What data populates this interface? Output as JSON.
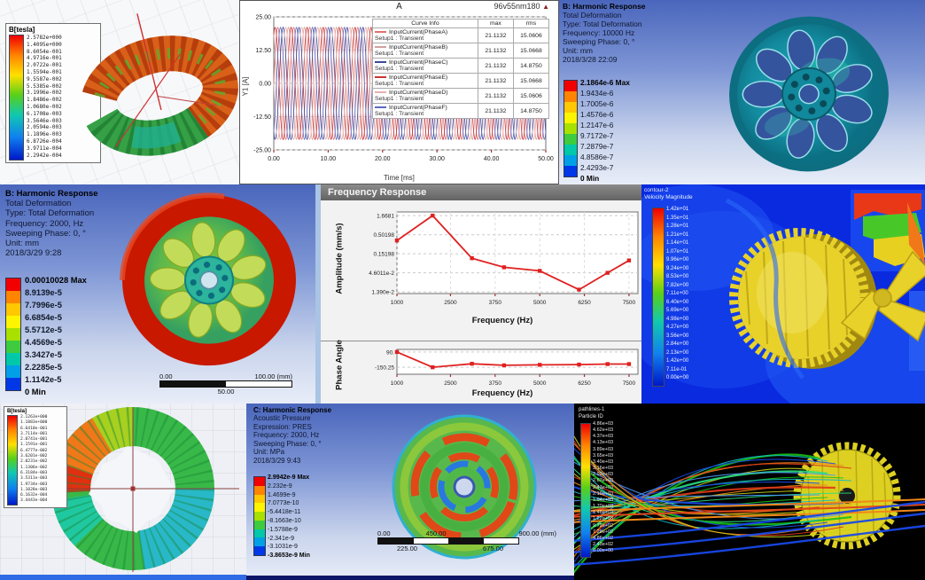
{
  "colors": {
    "band_colors": [
      "#f20000",
      "#ff8400",
      "#ffc800",
      "#fdf400",
      "#a8e000",
      "#3ecc3e",
      "#00c8a8",
      "#00a0e6",
      "#0038e8"
    ],
    "accent_red": "#e02020"
  },
  "maxwell_stator": {
    "legend_title": "B[tesla]",
    "legend_values": [
      "2.5782e+000",
      "1.4095e+000",
      "8.6054e-001",
      "4.9716e-001",
      "2.0722e-001",
      "1.5594e-001",
      "9.5587e-002",
      "5.5385e-002",
      "3.1996e-002",
      "1.8486e-002",
      "1.0680e-002",
      "6.1708e-003",
      "3.5646e-003",
      "2.0594e-003",
      "1.1896e-003",
      "6.8726e-004",
      "3.9711e-004",
      "2.2942e-004"
    ]
  },
  "harmonic_wheel_right": {
    "header_lines": [
      "B: Harmonic Response",
      "Total Deformation",
      "Type: Total Deformation",
      "Frequency: 10000 Hz",
      "Sweeping Phase: 0, °",
      "Unit: mm",
      "2018/3/28 22:09"
    ],
    "legend": [
      "2.1864e-6 Max",
      "1.9434e-6",
      "1.7005e-6",
      "1.4576e-6",
      "1.2147e-6",
      "9.7172e-7",
      "7.2879e-7",
      "4.8586e-7",
      "2.4293e-7",
      "0 Min"
    ]
  },
  "harmonic_wheel_left": {
    "header_lines": [
      "B: Harmonic Response",
      "Total Deformation",
      "Type: Total Deformation",
      "Frequency: 2000, Hz",
      "Sweeping Phase: 0, °",
      "Unit: mm",
      "2018/3/29 9:28"
    ],
    "legend": [
      "0.00010028 Max",
      "8.9139e-5",
      "7.7996e-5",
      "6.6854e-5",
      "5.5712e-5",
      "4.4569e-5",
      "3.3427e-5",
      "2.2285e-5",
      "1.1142e-5",
      "0 Min"
    ],
    "scale_bar": {
      "left": "0.00",
      "right": "100.00 (mm)",
      "center": "50.00"
    }
  },
  "cfd_velocity": {
    "legend_title_line1": "contour-2",
    "legend_title_line2": "Velocity Magnitude",
    "legend_values": [
      "1.42e+01",
      "1.35e+01",
      "1.28e+01",
      "1.21e+01",
      "1.14e+01",
      "1.07e+01",
      "9.96e+00",
      "9.24e+00",
      "8.53e+00",
      "7.82e+00",
      "7.11e+00",
      "6.40e+00",
      "5.69e+00",
      "4.98e+00",
      "4.27e+00",
      "3.56e+00",
      "2.84e+00",
      "2.13e+00",
      "1.42e+00",
      "7.11e-01",
      "0.00e+00"
    ]
  },
  "b_ring": {
    "legend_title": "B[tesla]",
    "legend_values": [
      "2.1263e+000",
      "1.1883e+000",
      "6.6410e-001",
      "3.7114e-001",
      "2.0741e-001",
      "1.1591e-001",
      "6.4777e-002",
      "3.6201e-002",
      "2.0231e-002",
      "1.1306e-002",
      "6.3184e-003",
      "3.5311e-003",
      "1.9734e-003",
      "1.1028e-003",
      "6.1632e-004",
      "3.4443e-004"
    ]
  },
  "acoustic_disk": {
    "header_lines": [
      "C: Harmonic Response",
      "Acoustic Pressure",
      "Expression: PRES",
      "Frequency: 2000, Hz",
      "Sweeping Phase: 0, °",
      "Unit: MPa",
      "2018/3/29 9:43"
    ],
    "legend": [
      "2.9942e-9 Max",
      "2.232e-9",
      "1.4699e-9",
      "7.0773e-10",
      "-5.4418e-11",
      "-8.1663e-10",
      "-1.5788e-9",
      "-2.341e-9",
      "-3.1031e-9",
      "-3.8653e-9 Min"
    ],
    "scale_bar": {
      "t0": "0.00",
      "t1": "450.00",
      "t2": "900.00 (mm)",
      "b0": "225.00",
      "b1": "675.00"
    }
  },
  "pathlines": {
    "legend_title_line1": "pathlines-1",
    "legend_title_line2": "Particle ID",
    "legend_values": [
      "4.86e+03",
      "4.62e+03",
      "4.37e+03",
      "4.13e+03",
      "3.89e+03",
      "3.65e+03",
      "3.40e+03",
      "3.16e+03",
      "2.92e+03",
      "2.67e+03",
      "2.43e+03",
      "2.19e+03",
      "1.94e+03",
      "1.70e+03",
      "1.46e+03",
      "1.22e+03",
      "9.72e+02",
      "7.29e+02",
      "4.86e+02",
      "2.43e+02",
      "0.00e+00"
    ],
    "stream_palette": [
      "#18c018",
      "#10b8c8",
      "#1848e8",
      "#f08818",
      "#e03818",
      "#c8d018",
      "#28e080",
      "#4898f8"
    ]
  },
  "chart_data": [
    {
      "type": "line",
      "title": "A",
      "subtitle": "96v55nm180",
      "xlabel": "Time [ms]",
      "ylabel": "Y1 [A]",
      "xlim": [
        0,
        50
      ],
      "ylim": [
        -25,
        25
      ],
      "xticks": [
        "0.00",
        "10.00",
        "20.00",
        "30.00",
        "40.00",
        "50.00"
      ],
      "yticks": [
        "25.00",
        "12.50",
        "0.00",
        "-12.50",
        "-25.00"
      ],
      "grid": "horizontal-dashed",
      "waveform": {
        "amplitude": 21.1132,
        "period_ms": 2.94,
        "phase_offsets_deg": [
          0,
          120,
          240,
          60,
          180,
          300
        ]
      },
      "table_headers": [
        "Curve Info",
        "max",
        "rms"
      ],
      "series": [
        {
          "name": "InputCurrent(PhaseA)",
          "setup": "Setup1 : Transient",
          "max": "21.1132",
          "rms": "15.0606",
          "color": "#e07070"
        },
        {
          "name": "InputCurrent(PhaseB)",
          "setup": "Setup1 : Transient",
          "max": "21.1132",
          "rms": "15.0668",
          "color": "#d0a0a0"
        },
        {
          "name": "InputCurrent(PhaseC)",
          "setup": "Setup1 : Transient",
          "max": "21.1132",
          "rms": "14.8750",
          "color": "#3a4a9c"
        },
        {
          "name": "InputCurrent(PhaseE)",
          "setup": "Setup1 : Transient",
          "max": "21.1132",
          "rms": "15.0668",
          "color": "#cc3333"
        },
        {
          "name": "InputCurrent(PhaseD)",
          "setup": "Setup1 : Transient",
          "max": "21.1132",
          "rms": "15.0606",
          "color": "#e8b0b0"
        },
        {
          "name": "InputCurrent(PhaseF)",
          "setup": "Setup1 : Transient",
          "max": "21.1132",
          "rms": "14.8750",
          "color": "#5a6ac0"
        }
      ]
    },
    {
      "type": "line",
      "window_title": "Frequency Response",
      "xlabel": "Frequency (Hz)",
      "ylabel": "Amplitude (mm/s)",
      "yscale": "log",
      "yticks": [
        "1.6681",
        "0.50198",
        "0.15198",
        "4.6011e-2",
        "1.390e-2"
      ],
      "xticks": [
        "1000",
        "2500",
        "3750",
        "5000",
        "6250",
        "7500"
      ],
      "xlim": [
        1000,
        7750
      ],
      "x": [
        1000,
        2000,
        3100,
        4000,
        5000,
        6100,
        6900,
        7500
      ],
      "y": [
        0.35,
        1.6681,
        0.115,
        0.065,
        0.052,
        0.016,
        0.046,
        0.1
      ],
      "color": "#e02020",
      "legend_position": "none"
    },
    {
      "type": "line",
      "xlabel": "Frequency (Hz)",
      "ylabel": "Phase Angle",
      "yticks": [
        "90.",
        "-150.25"
      ],
      "xticks": [
        "1000",
        "2500",
        "3750",
        "5000",
        "6250",
        "7500"
      ],
      "xlim": [
        1000,
        7750
      ],
      "ylim": [
        -260,
        130
      ],
      "x": [
        1000,
        2000,
        3100,
        4000,
        5000,
        6100,
        6900,
        7500
      ],
      "y": [
        90,
        -150.25,
        -95,
        -120,
        -112,
        -108,
        -100,
        -100
      ],
      "color": "#e02020",
      "legend_position": "none"
    }
  ]
}
